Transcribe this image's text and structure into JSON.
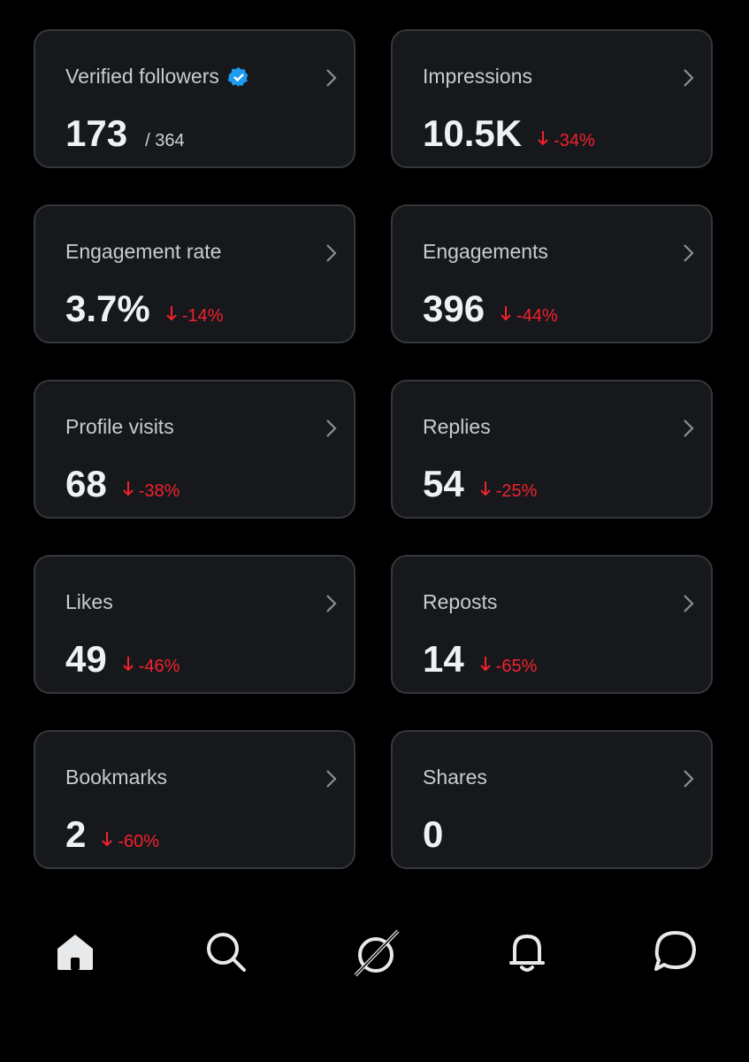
{
  "cards": [
    {
      "label": "Verified followers",
      "verified": true,
      "value": "173",
      "total": "/ 364"
    },
    {
      "label": "Impressions",
      "value": "10.5K",
      "change": "-34%"
    },
    {
      "label": "Engagement rate",
      "value": "3.7%",
      "change": "-14%"
    },
    {
      "label": "Engagements",
      "value": "396",
      "change": "-44%"
    },
    {
      "label": "Profile visits",
      "value": "68",
      "change": "-38%"
    },
    {
      "label": "Replies",
      "value": "54",
      "change": "-25%"
    },
    {
      "label": "Likes",
      "value": "49",
      "change": "-46%"
    },
    {
      "label": "Reposts",
      "value": "14",
      "change": "-65%"
    },
    {
      "label": "Bookmarks",
      "value": "2",
      "change": "-60%"
    },
    {
      "label": "Shares",
      "value": "0"
    }
  ]
}
